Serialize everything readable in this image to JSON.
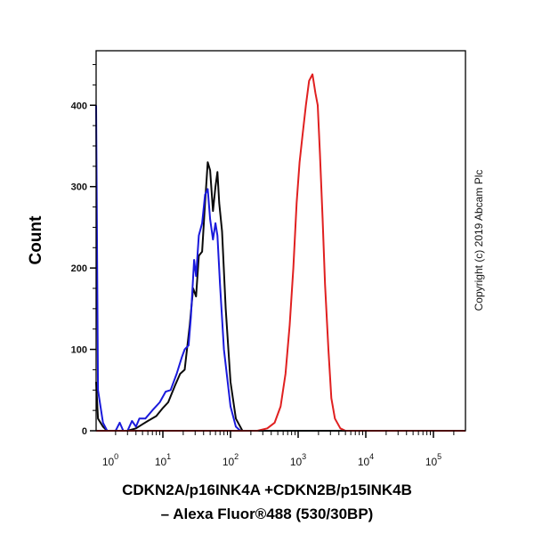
{
  "chart_data": {
    "type": "line",
    "title": "",
    "xlabel_line1": "CDKN2A/p16INK4A +CDKN2B/p15INK4B",
    "xlabel_line2": "– Alexa Fluor®488 (530/30BP)",
    "ylabel": "Count",
    "x_scale": "log",
    "xlim": [
      1,
      300000
    ],
    "ylim": [
      0,
      467
    ],
    "yticks": [
      0,
      100,
      200,
      300,
      400
    ],
    "xticks": [
      {
        "base": "10",
        "exp": "0",
        "value": 1
      },
      {
        "base": "10",
        "exp": "1",
        "value": 10
      },
      {
        "base": "10",
        "exp": "2",
        "value": 100
      },
      {
        "base": "10",
        "exp": "3",
        "value": 1000
      },
      {
        "base": "10",
        "exp": "4",
        "value": 10000
      },
      {
        "base": "10",
        "exp": "5",
        "value": 100000
      }
    ],
    "grid": false,
    "series": [
      {
        "color": "#0a0a0a",
        "points": [
          [
            1,
            60
          ],
          [
            1.1,
            15
          ],
          [
            1.3,
            5
          ],
          [
            1.5,
            0
          ],
          [
            3,
            0
          ],
          [
            4,
            3
          ],
          [
            5,
            8
          ],
          [
            6,
            12
          ],
          [
            8,
            18
          ],
          [
            10,
            28
          ],
          [
            12,
            35
          ],
          [
            15,
            55
          ],
          [
            18,
            70
          ],
          [
            21,
            75
          ],
          [
            25,
            130
          ],
          [
            28,
            175
          ],
          [
            31,
            165
          ],
          [
            34,
            215
          ],
          [
            38,
            220
          ],
          [
            42,
            280
          ],
          [
            46,
            330
          ],
          [
            50,
            320
          ],
          [
            55,
            270
          ],
          [
            60,
            300
          ],
          [
            64,
            318
          ],
          [
            68,
            280
          ],
          [
            75,
            245
          ],
          [
            85,
            150
          ],
          [
            100,
            60
          ],
          [
            120,
            15
          ],
          [
            150,
            0
          ],
          [
            300000,
            0
          ]
        ]
      },
      {
        "color": "#1a1adc",
        "points": [
          [
            1,
            400
          ],
          [
            1.1,
            50
          ],
          [
            1.3,
            10
          ],
          [
            1.5,
            0
          ],
          [
            2,
            0
          ],
          [
            2.3,
            10
          ],
          [
            2.6,
            0
          ],
          [
            3,
            0
          ],
          [
            3.5,
            12
          ],
          [
            4,
            5
          ],
          [
            4.5,
            15
          ],
          [
            5.5,
            15
          ],
          [
            7,
            25
          ],
          [
            9,
            35
          ],
          [
            11,
            48
          ],
          [
            13,
            50
          ],
          [
            16,
            70
          ],
          [
            19,
            90
          ],
          [
            21,
            100
          ],
          [
            24,
            105
          ],
          [
            26,
            140
          ],
          [
            29,
            210
          ],
          [
            31,
            190
          ],
          [
            34,
            240
          ],
          [
            38,
            255
          ],
          [
            42,
            290
          ],
          [
            46,
            297
          ],
          [
            50,
            260
          ],
          [
            55,
            235
          ],
          [
            60,
            255
          ],
          [
            64,
            240
          ],
          [
            70,
            180
          ],
          [
            80,
            100
          ],
          [
            100,
            30
          ],
          [
            120,
            5
          ],
          [
            140,
            0
          ]
        ]
      },
      {
        "color": "#e02020",
        "points": [
          [
            1,
            0
          ],
          [
            250,
            0
          ],
          [
            350,
            3
          ],
          [
            450,
            10
          ],
          [
            550,
            30
          ],
          [
            650,
            70
          ],
          [
            750,
            130
          ],
          [
            850,
            200
          ],
          [
            950,
            280
          ],
          [
            1050,
            330
          ],
          [
            1150,
            360
          ],
          [
            1300,
            400
          ],
          [
            1450,
            430
          ],
          [
            1630,
            438
          ],
          [
            1800,
            415
          ],
          [
            1950,
            400
          ],
          [
            2100,
            340
          ],
          [
            2300,
            260
          ],
          [
            2500,
            180
          ],
          [
            2800,
            100
          ],
          [
            3100,
            40
          ],
          [
            3500,
            15
          ],
          [
            4200,
            3
          ],
          [
            5000,
            0
          ],
          [
            300000,
            0
          ]
        ]
      }
    ]
  },
  "copyright": "Copyright (c) 2019 Abcam Plc"
}
